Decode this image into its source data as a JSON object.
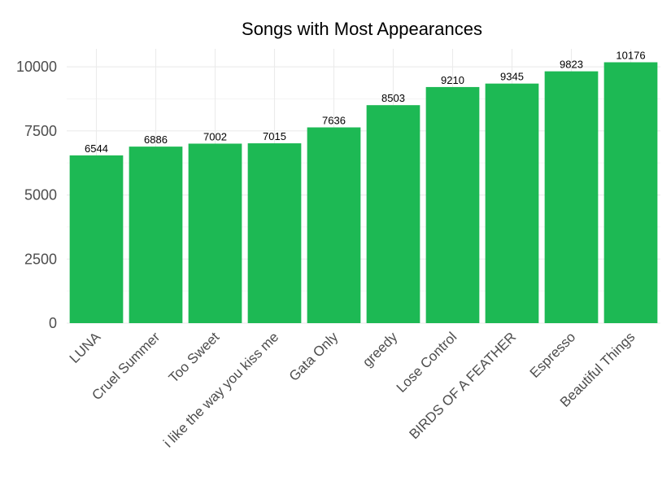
{
  "chart_data": {
    "type": "bar",
    "title": "Songs with Most Appearances",
    "xlabel": "",
    "ylabel": "",
    "categories": [
      "LUNA",
      "Cruel Summer",
      "Too Sweet",
      "i like the way you kiss me",
      "Gata Only",
      "greedy",
      "Lose Control",
      "BIRDS OF A FEATHER",
      "Espresso",
      "Beautiful Things"
    ],
    "values": [
      6544,
      6886,
      7002,
      7015,
      7636,
      8503,
      9210,
      9345,
      9823,
      10176
    ],
    "data_labels": [
      "6544",
      "6886",
      "7002",
      "7015",
      "7636",
      "8503",
      "9210",
      "9345",
      "9823",
      "10176"
    ],
    "yticks": [
      0,
      2500,
      5000,
      7500,
      10000
    ],
    "ytick_labels": [
      "0",
      "2500",
      "5000",
      "7500",
      "10000"
    ],
    "ylim": [
      0,
      10700
    ],
    "grid": true,
    "legend": "none",
    "colors": {
      "bar": "#1DB954",
      "grid_major": "#ebebeb",
      "grid_minor": "#f3f3f3",
      "tick_text": "#4d4d4d",
      "title": "#000000"
    }
  }
}
